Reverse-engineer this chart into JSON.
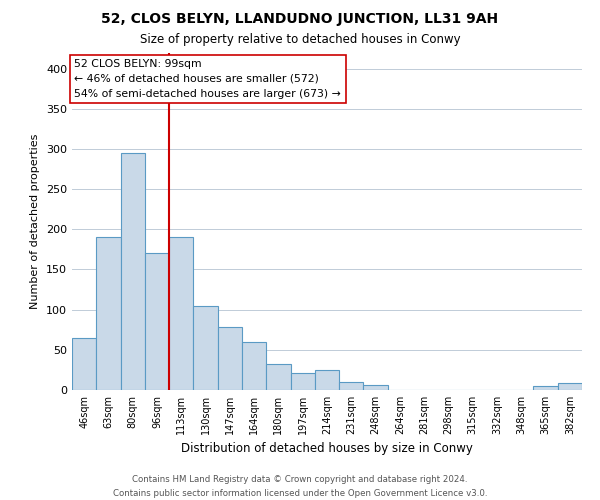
{
  "title": "52, CLOS BELYN, LLANDUDNO JUNCTION, LL31 9AH",
  "subtitle": "Size of property relative to detached houses in Conwy",
  "xlabel": "Distribution of detached houses by size in Conwy",
  "ylabel": "Number of detached properties",
  "bin_labels": [
    "46sqm",
    "63sqm",
    "80sqm",
    "96sqm",
    "113sqm",
    "130sqm",
    "147sqm",
    "164sqm",
    "180sqm",
    "197sqm",
    "214sqm",
    "231sqm",
    "248sqm",
    "264sqm",
    "281sqm",
    "298sqm",
    "315sqm",
    "332sqm",
    "348sqm",
    "365sqm",
    "382sqm"
  ],
  "bar_heights": [
    65,
    190,
    295,
    170,
    190,
    105,
    79,
    60,
    32,
    21,
    25,
    10,
    6,
    0,
    0,
    0,
    0,
    0,
    0,
    5,
    9
  ],
  "bar_color": "#c9d9e8",
  "bar_edge_color": "#5a9ac4",
  "vline_x_index": 3.5,
  "vline_color": "#cc0000",
  "annotation_title": "52 CLOS BELYN: 99sqm",
  "annotation_line1": "← 46% of detached houses are smaller (572)",
  "annotation_line2": "54% of semi-detached houses are larger (673) →",
  "annotation_box_color": "#ffffff",
  "annotation_box_edge": "#cc0000",
  "ylim": [
    0,
    420
  ],
  "yticks": [
    0,
    50,
    100,
    150,
    200,
    250,
    300,
    350,
    400
  ],
  "footer_line1": "Contains HM Land Registry data © Crown copyright and database right 2024.",
  "footer_line2": "Contains public sector information licensed under the Open Government Licence v3.0.",
  "bg_color": "#ffffff",
  "grid_color": "#c0ccd8"
}
